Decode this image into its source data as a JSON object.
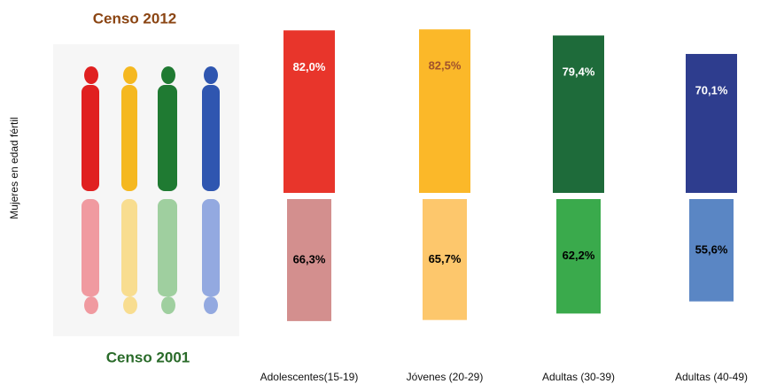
{
  "chart_data": {
    "type": "mirrored-bar",
    "y_label": "Mujeres en edad fértil",
    "categories": [
      "Adolescentes(15-19)",
      "Jóvenes (20-29)",
      "Adultas (30-39)",
      "Adultas (40-49)"
    ],
    "series": [
      {
        "name": "Censo 2012",
        "color": "#8b4513",
        "bar_colors": [
          "#e8352b",
          "#fbb829",
          "#1e6b3a",
          "#2e3d8e"
        ],
        "values": [
          82.0,
          82.5,
          79.4,
          70.1
        ],
        "value_labels": [
          "82,0%",
          "82,5%",
          "79,4%",
          "70,1%"
        ]
      },
      {
        "name": "Censo 2001",
        "color": "#2a6b2a",
        "bar_colors": [
          "#d38f8e",
          "#fdc76c",
          "#3aaa4c",
          "#5a86c4"
        ],
        "values": [
          66.3,
          65.7,
          62.2,
          55.6
        ],
        "value_labels": [
          "66,3%",
          "65,7%",
          "62,2%",
          "55,6%"
        ]
      }
    ]
  }
}
